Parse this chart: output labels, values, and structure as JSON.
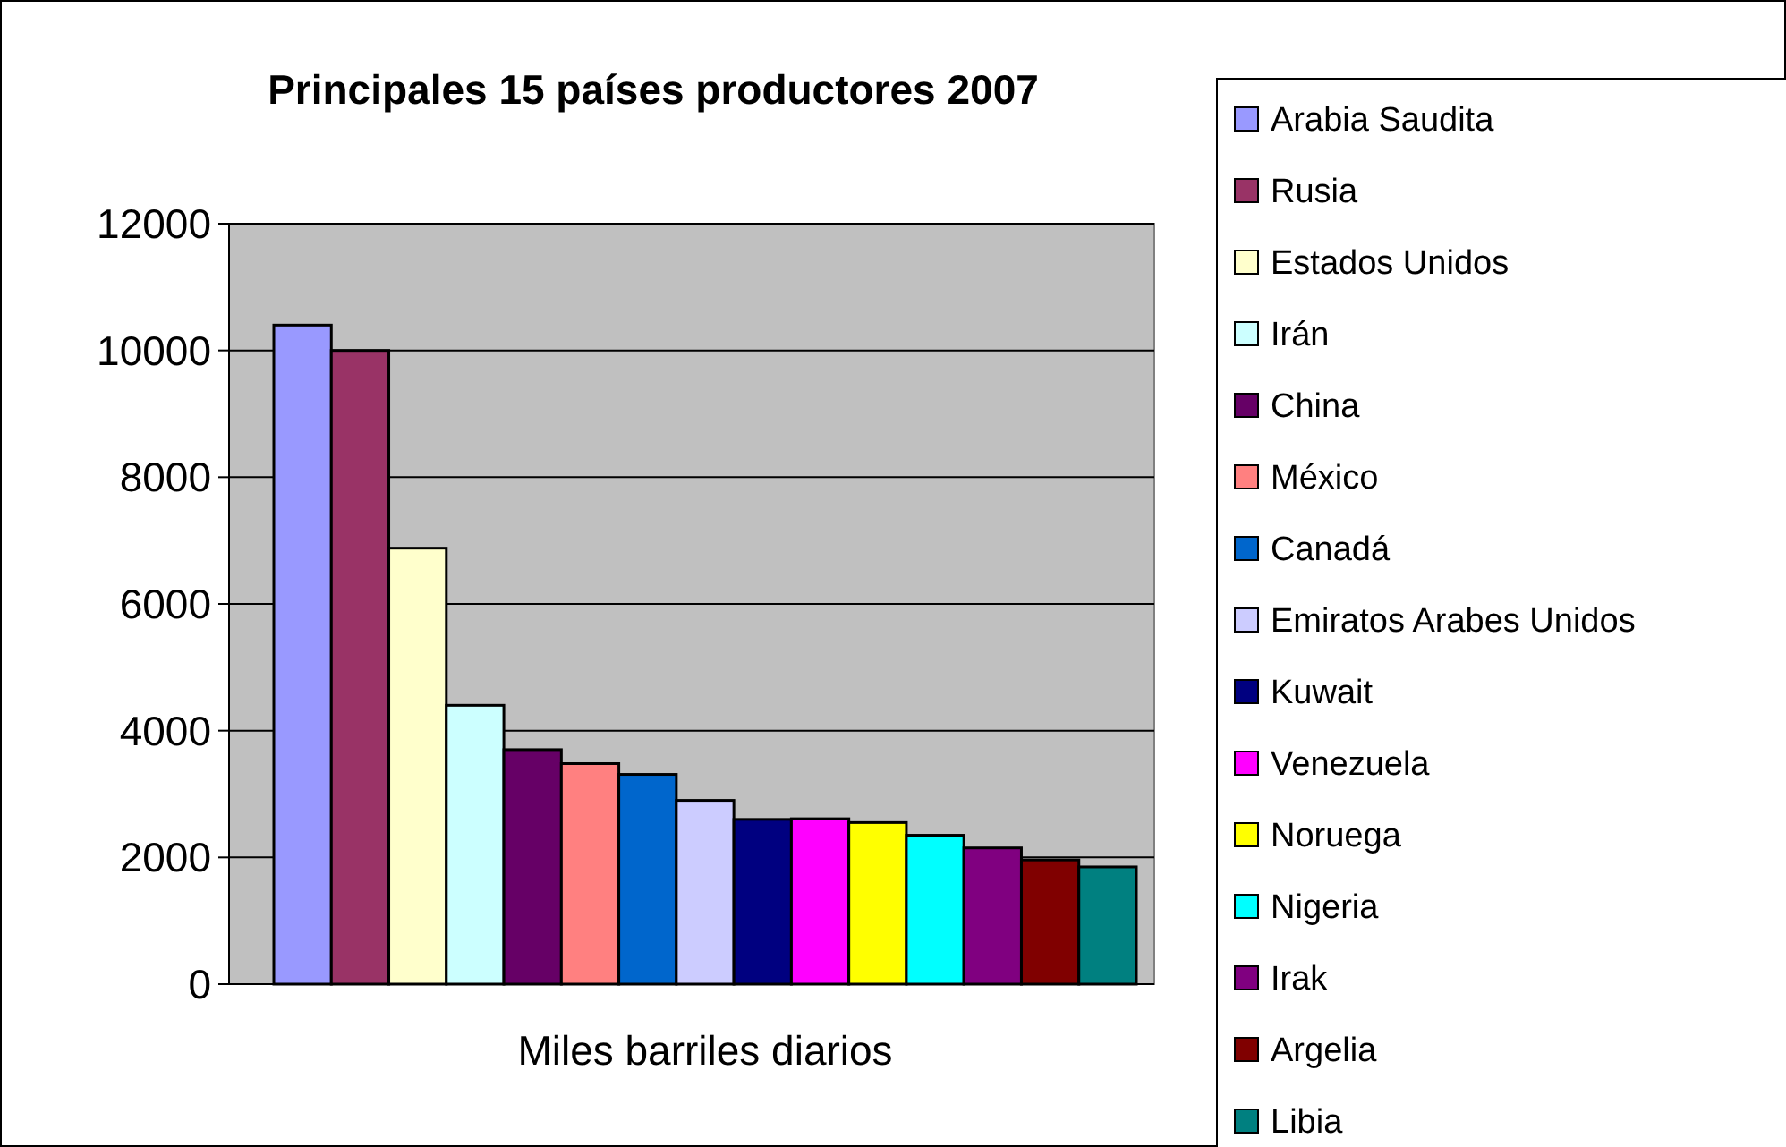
{
  "chart_data": {
    "type": "bar",
    "title": "Principales 15 países productores 2007",
    "categories": [
      "Miles barriles diarios"
    ],
    "ylim": [
      0,
      12000
    ],
    "yticks": [
      0,
      2000,
      4000,
      6000,
      8000,
      10000,
      12000
    ],
    "grid": "y",
    "legend": "right",
    "series": [
      {
        "name": "Arabia Saudita",
        "color": "#9999ff",
        "values": [
          10400
        ]
      },
      {
        "name": "Rusia",
        "color": "#993366",
        "values": [
          10000
        ]
      },
      {
        "name": "Estados Unidos",
        "color": "#ffffcc",
        "values": [
          6880
        ]
      },
      {
        "name": "Irán",
        "color": "#ccffff",
        "values": [
          4400
        ]
      },
      {
        "name": "China",
        "color": "#660066",
        "values": [
          3700
        ]
      },
      {
        "name": "México",
        "color": "#ff8080",
        "values": [
          3480
        ]
      },
      {
        "name": "Canadá",
        "color": "#0066cc",
        "values": [
          3310
        ]
      },
      {
        "name": "Emiratos Arabes Unidos",
        "color": "#ccccff",
        "values": [
          2900
        ]
      },
      {
        "name": "Kuwait",
        "color": "#000080",
        "values": [
          2600
        ]
      },
      {
        "name": "Venezuela",
        "color": "#ff00ff",
        "values": [
          2610
        ]
      },
      {
        "name": "Noruega",
        "color": "#ffff00",
        "values": [
          2550
        ]
      },
      {
        "name": "Nigeria",
        "color": "#00ffff",
        "values": [
          2350
        ]
      },
      {
        "name": "Irak",
        "color": "#800080",
        "values": [
          2150
        ]
      },
      {
        "name": "Argelia",
        "color": "#800000",
        "values": [
          1960
        ]
      },
      {
        "name": "Libia",
        "color": "#008080",
        "values": [
          1850
        ]
      }
    ]
  }
}
